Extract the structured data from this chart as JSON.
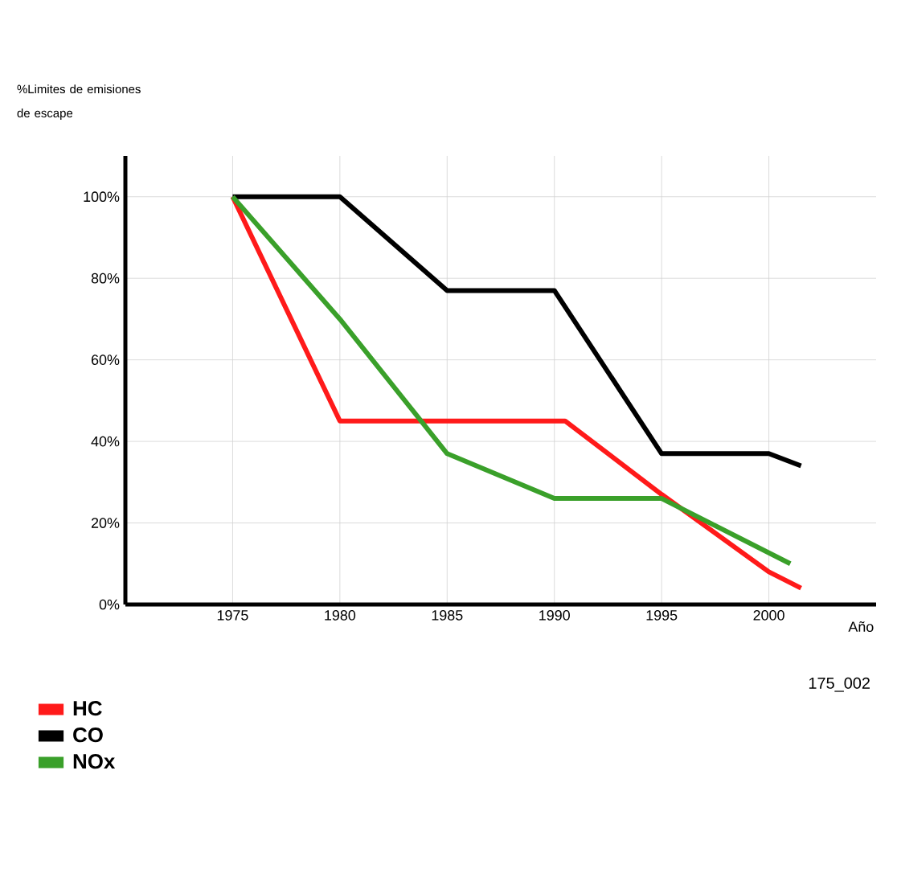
{
  "chart_data": {
    "type": "line",
    "ylabel": "%Limites de emisiones de escape",
    "xlabel": "Año",
    "annotations": [
      "175_002"
    ],
    "xlim": [
      1970,
      2005
    ],
    "ylim": [
      0,
      110
    ],
    "xticks": [
      1975,
      1980,
      1985,
      1990,
      1995,
      2000
    ],
    "yticks": [
      {
        "value": 0,
        "label": "0%"
      },
      {
        "value": 20,
        "label": "20%"
      },
      {
        "value": 40,
        "label": "40%"
      },
      {
        "value": 60,
        "label": "60%"
      },
      {
        "value": 80,
        "label": "80%"
      },
      {
        "value": 100,
        "label": "100%"
      }
    ],
    "grid": true,
    "legend": "bottom left",
    "series": [
      {
        "name": "HC",
        "color": "#ff1a1a",
        "x": [
          1975,
          1980,
          1985,
          1990.5,
          1995,
          2000,
          2001.5
        ],
        "values": [
          100,
          45,
          45,
          45,
          27,
          8,
          4
        ]
      },
      {
        "name": "CO",
        "color": "#000000",
        "x": [
          1975,
          1980,
          1985,
          1990,
          1995,
          2000,
          2001.5
        ],
        "values": [
          100,
          100,
          77,
          77,
          37,
          37,
          34
        ]
      },
      {
        "name": "NOx",
        "color": "#3aa02a",
        "x": [
          1975,
          1980,
          1985,
          1990,
          1995,
          2001
        ],
        "values": [
          100,
          70,
          37,
          26,
          26,
          10
        ]
      }
    ]
  }
}
